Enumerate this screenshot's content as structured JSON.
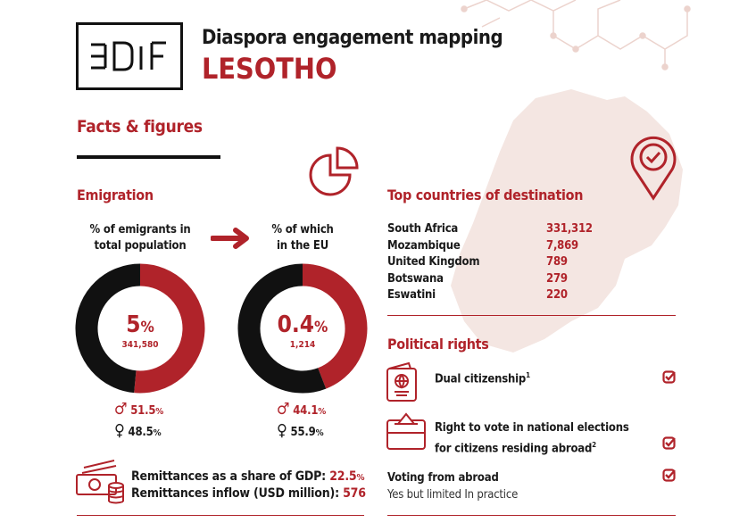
{
  "logo": {
    "text": "EUDIF"
  },
  "header": {
    "title": "Diaspora engagement mapping",
    "country": "LESOTHO"
  },
  "section_title": "Facts & figures",
  "emigration": {
    "title": "Emigration",
    "total": {
      "label_line1": "% of emigrants in",
      "label_line2": "total population",
      "percent": "5",
      "unit": "%",
      "count": "341,580",
      "male": "51.5",
      "female": "48.5",
      "male_share": 51.5
    },
    "eu": {
      "label_line1": "% of which",
      "label_line2": "in the EU",
      "percent": "0.4",
      "unit": "%",
      "count": "1,214",
      "male": "44.1",
      "female": "55.9",
      "male_share": 44.1
    },
    "pct": "%"
  },
  "remittances": {
    "gdp_label": "Remittances as a share of GDP:",
    "gdp_value": "22.5",
    "gdp_unit": "%",
    "inflow_label": "Remittances inflow (USD million):",
    "inflow_value": "576"
  },
  "destinations": {
    "title": "Top countries of destination",
    "rows": [
      {
        "country": "South Africa",
        "value": "331,312"
      },
      {
        "country": "Mozambique",
        "value": "7,869"
      },
      {
        "country": "United Kingdom",
        "value": "789"
      },
      {
        "country": "Botswana",
        "value": "279"
      },
      {
        "country": "Eswatini",
        "value": "220"
      }
    ]
  },
  "political_rights": {
    "title": "Political rights",
    "items": [
      {
        "line1": "Dual citizenship",
        "sup": "1",
        "checked": true
      },
      {
        "line1": "Right to vote in national elections",
        "line2": "for citizens residing abroad",
        "sup": "2",
        "checked": true
      },
      {
        "line1": "Voting from abroad",
        "line2": "Yes but limited In practice",
        "checked": true
      }
    ]
  },
  "colors": {
    "accent": "#b0232a",
    "dark": "#111111",
    "map": "#f4e6e2"
  }
}
